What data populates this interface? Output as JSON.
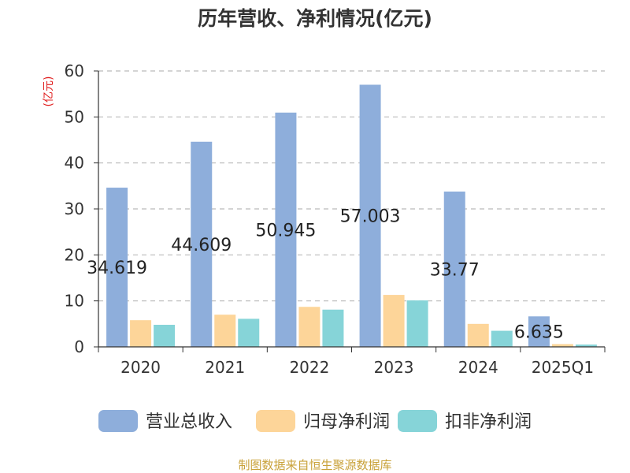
{
  "chart_data": {
    "type": "bar",
    "title": "历年营收、净利情况(亿元)",
    "ylabel": "(亿元)",
    "xlabel": "",
    "ylim": [
      0,
      60
    ],
    "yticks": [
      0,
      10,
      20,
      30,
      40,
      50,
      60
    ],
    "grid": true,
    "legend_position": "bottom",
    "categories": [
      "2020",
      "2021",
      "2022",
      "2023",
      "2024",
      "2025Q1"
    ],
    "series": [
      {
        "name": "营业总收入",
        "color": "#8eaedb",
        "values": [
          34.619,
          44.609,
          50.945,
          57.003,
          33.77,
          6.635
        ],
        "labels": [
          "34.619",
          "44.609",
          "50.945",
          "57.003",
          "33.77",
          "6.635"
        ]
      },
      {
        "name": "归母净利润",
        "color": "#fdd599",
        "values": [
          5.8,
          7.0,
          8.7,
          11.3,
          5.0,
          0.6
        ]
      },
      {
        "name": "扣非净利润",
        "color": "#86d4d8",
        "values": [
          4.8,
          6.1,
          8.1,
          10.1,
          3.5,
          0.5
        ]
      }
    ]
  },
  "colors": {
    "unit": "#e02020",
    "source": "#c9a23a",
    "grid": "#bbbbbb",
    "axis": "#333333"
  },
  "footer": {
    "source": "制图数据来自恒生聚源数据库"
  }
}
